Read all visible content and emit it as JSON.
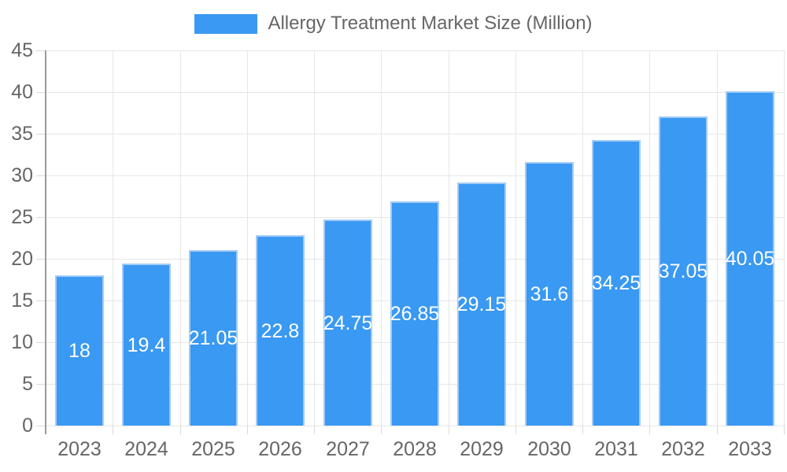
{
  "legend": {
    "label": "Allergy Treatment Market Size (Million)"
  },
  "chart_data": {
    "type": "bar",
    "title": "Allergy Treatment Market Size (Million)",
    "categories": [
      "2023",
      "2024",
      "2025",
      "2026",
      "2027",
      "2028",
      "2029",
      "2030",
      "2031",
      "2032",
      "2033"
    ],
    "values": [
      18,
      19.4,
      21.05,
      22.8,
      24.75,
      26.85,
      29.15,
      31.6,
      34.25,
      37.05,
      40.05
    ],
    "value_labels": [
      "18",
      "19.4",
      "21.05",
      "22.8",
      "24.75",
      "26.85",
      "29.15",
      "31.6",
      "34.25",
      "37.05",
      "40.05"
    ],
    "xlabel": "",
    "ylabel": "",
    "ylim": [
      0,
      45
    ],
    "ytick_step": 5,
    "grid": true,
    "legend_position": "top",
    "colors": {
      "bar": "#3A99F2",
      "bar_border": "#A3CBF6",
      "bar_label": "#FFFFFF",
      "grid": "#E6E6E6",
      "tick": "#D9D9D9",
      "axis": "#9A9A9A",
      "text": "#666666",
      "background": "#FFFFFF"
    }
  }
}
